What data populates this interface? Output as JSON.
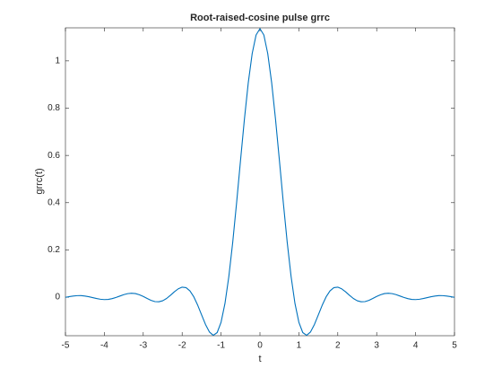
{
  "chart_data": {
    "type": "line",
    "title": "Root-raised-cosine pulse grrc",
    "xlabel": "t",
    "ylabel": "grrc(t)",
    "color": "#0072bd",
    "x": [
      -5.0,
      -4.9,
      -4.8,
      -4.7,
      -4.6,
      -4.5,
      -4.4,
      -4.3,
      -4.2,
      -4.1,
      -4.0,
      -3.9,
      -3.8,
      -3.7,
      -3.6,
      -3.5,
      -3.4,
      -3.3,
      -3.2,
      -3.1,
      -3.0,
      -2.9,
      -2.8,
      -2.7,
      -2.6,
      -2.5,
      -2.4,
      -2.3,
      -2.2,
      -2.1,
      -2.0,
      -1.9,
      -1.8,
      -1.7,
      -1.6,
      -1.5,
      -1.4,
      -1.3,
      -1.2,
      -1.1,
      -1.0,
      -0.9,
      -0.8,
      -0.7,
      -0.6,
      -0.5,
      -0.4,
      -0.3,
      -0.2,
      -0.1,
      0.0,
      0.1,
      0.2,
      0.3,
      0.4,
      0.5,
      0.6,
      0.7,
      0.8,
      0.9,
      1.0,
      1.1,
      1.2,
      1.3,
      1.4,
      1.5,
      1.6,
      1.7,
      1.8,
      1.9,
      2.0,
      2.1,
      2.2,
      2.3,
      2.4,
      2.5,
      2.6,
      2.7,
      2.8,
      2.9,
      3.0,
      3.1,
      3.2,
      3.3,
      3.4,
      3.5,
      3.6,
      3.7,
      3.8,
      3.9,
      4.0,
      4.1,
      4.2,
      4.3,
      4.4,
      4.5,
      4.6,
      4.7,
      4.8,
      4.9,
      5.0
    ],
    "values": [
      -0.0006,
      0.0024,
      0.005,
      0.0065,
      0.0066,
      0.005,
      0.002,
      -0.0018,
      -0.0057,
      -0.0087,
      -0.0101,
      -0.0093,
      -0.0061,
      -0.0011,
      0.0049,
      0.0107,
      0.0151,
      0.0168,
      0.0153,
      0.0104,
      0.003,
      -0.0055,
      -0.0134,
      -0.0186,
      -0.0194,
      -0.015,
      -0.0054,
      0.0081,
      0.0228,
      0.0355,
      0.0424,
      0.0403,
      0.0267,
      0.0014,
      -0.0339,
      -0.075,
      -0.1154,
      -0.147,
      -0.1612,
      -0.1497,
      -0.1061,
      -0.0269,
      0.0876,
      0.2329,
      0.4006,
      0.5786,
      0.7528,
      0.9083,
      1.031,
      1.1096,
      1.1366,
      1.1096,
      1.031,
      0.9083,
      0.7528,
      0.5786,
      0.4006,
      0.2329,
      0.0876,
      -0.0269,
      -0.1061,
      -0.1497,
      -0.1612,
      -0.147,
      -0.1154,
      -0.075,
      -0.0339,
      0.0014,
      0.0267,
      0.0403,
      0.0424,
      0.0355,
      0.0228,
      0.0081,
      -0.0054,
      -0.015,
      -0.0194,
      -0.0186,
      -0.0134,
      -0.0055,
      0.003,
      0.0104,
      0.0153,
      0.0168,
      0.0151,
      0.0107,
      0.0049,
      -0.0011,
      -0.0061,
      -0.0093,
      -0.0101,
      -0.0087,
      -0.0057,
      -0.0018,
      0.002,
      0.005,
      0.0066,
      0.0065,
      0.005,
      0.0024,
      -0.0006
    ],
    "xlim": [
      -5,
      5
    ],
    "xticks": [
      -5,
      -4,
      -3,
      -2,
      -1,
      0,
      1,
      2,
      3,
      4,
      5
    ],
    "ylim": [
      -0.163,
      1.14
    ],
    "yticks": [
      0,
      0.2,
      0.4,
      0.6,
      0.8,
      1
    ],
    "grid": false
  }
}
